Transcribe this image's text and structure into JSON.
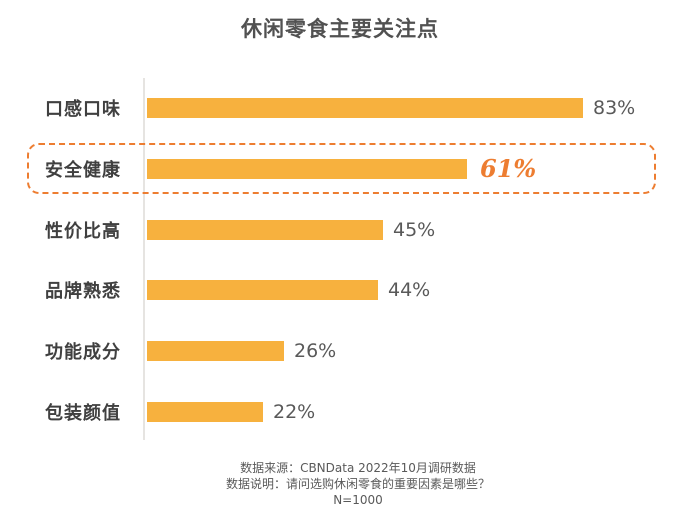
{
  "title": "休闲零食主要关注点",
  "chart_data": {
    "type": "bar",
    "orientation": "horizontal",
    "categories": [
      "口感口味",
      "安全健康",
      "性价比高",
      "品牌熟悉",
      "功能成分",
      "包装颜值"
    ],
    "values": [
      83,
      61,
      45,
      44,
      26,
      22
    ],
    "value_labels": [
      "83%",
      "61%",
      "45%",
      "44%",
      "26%",
      "22%"
    ],
    "unit": "%",
    "xlim": [
      0,
      100
    ],
    "highlight_index": 1,
    "highlight_value_label": "61%",
    "bar_color": "#f7b13e",
    "highlight_color": "#ed7d31",
    "label_color": "#404040",
    "value_color": "#595959",
    "grid": false,
    "legend": false,
    "axis_baseline": true
  },
  "footer": {
    "source": "数据来源：CBNData 2022年10月调研数据",
    "note": "数据说明：请问选购休闲零食的重要因素是哪些？",
    "sample": "N=1000"
  }
}
